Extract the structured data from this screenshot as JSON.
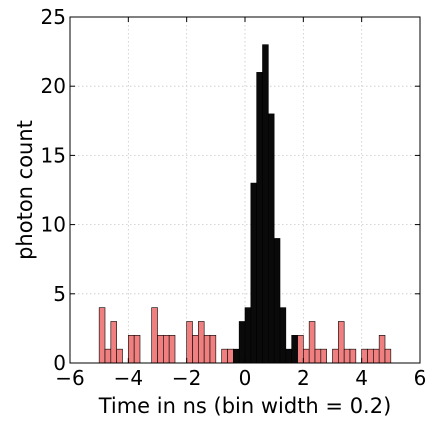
{
  "chart_data": {
    "type": "bar",
    "title": "",
    "xlabel": "Time in ns (bin width = 0.2)",
    "ylabel": "photon count",
    "xlim": [
      -6,
      6
    ],
    "ylim": [
      0,
      25
    ],
    "xticks": [
      -6,
      -4,
      -2,
      0,
      2,
      4,
      6
    ],
    "xtick_labels": [
      "−6",
      "−4",
      "−2",
      "0",
      "2",
      "4",
      "6"
    ],
    "yticks": [
      0,
      5,
      10,
      15,
      20,
      25
    ],
    "ytick_labels": [
      "0",
      "5",
      "10",
      "15",
      "20",
      "25"
    ],
    "grid": true,
    "bin_width": 0.2,
    "colors": {
      "background_bins": "#f08080",
      "signal_bins": "#0a0a0a",
      "bar_edge": "#000000"
    },
    "series": [
      {
        "color": "#f08080",
        "bins": [
          {
            "x0": -5.0,
            "x1": -4.8,
            "y": 4
          },
          {
            "x0": -4.8,
            "x1": -4.6,
            "y": 1
          },
          {
            "x0": -4.6,
            "x1": -4.4,
            "y": 3
          },
          {
            "x0": -4.4,
            "x1": -4.2,
            "y": 1
          },
          {
            "x0": -4.0,
            "x1": -3.8,
            "y": 2
          },
          {
            "x0": -3.8,
            "x1": -3.6,
            "y": 2
          },
          {
            "x0": -3.2,
            "x1": -3.0,
            "y": 4
          },
          {
            "x0": -3.0,
            "x1": -2.8,
            "y": 2
          },
          {
            "x0": -2.8,
            "x1": -2.6,
            "y": 2
          },
          {
            "x0": -2.6,
            "x1": -2.4,
            "y": 2
          },
          {
            "x0": -2.0,
            "x1": -1.8,
            "y": 3
          },
          {
            "x0": -1.8,
            "x1": -1.6,
            "y": 2
          },
          {
            "x0": -1.6,
            "x1": -1.4,
            "y": 3
          },
          {
            "x0": -1.4,
            "x1": -1.2,
            "y": 2
          },
          {
            "x0": -1.2,
            "x1": -1.0,
            "y": 2
          },
          {
            "x0": -0.8,
            "x1": -0.6,
            "y": 1
          },
          {
            "x0": -0.6,
            "x1": -0.4,
            "y": 1
          },
          {
            "x0": 1.8,
            "x1": 2.0,
            "y": 2
          },
          {
            "x0": 2.0,
            "x1": 2.2,
            "y": 1
          },
          {
            "x0": 2.2,
            "x1": 2.4,
            "y": 3
          },
          {
            "x0": 2.4,
            "x1": 2.6,
            "y": 1
          },
          {
            "x0": 2.6,
            "x1": 2.8,
            "y": 1
          },
          {
            "x0": 3.0,
            "x1": 3.2,
            "y": 1
          },
          {
            "x0": 3.2,
            "x1": 3.4,
            "y": 3
          },
          {
            "x0": 3.4,
            "x1": 3.6,
            "y": 1
          },
          {
            "x0": 3.6,
            "x1": 3.8,
            "y": 1
          },
          {
            "x0": 4.0,
            "x1": 4.2,
            "y": 1
          },
          {
            "x0": 4.2,
            "x1": 4.4,
            "y": 1
          },
          {
            "x0": 4.4,
            "x1": 4.6,
            "y": 1
          },
          {
            "x0": 4.6,
            "x1": 4.8,
            "y": 2
          },
          {
            "x0": 4.8,
            "x1": 5.0,
            "y": 1
          }
        ]
      },
      {
        "color": "#0a0a0a",
        "bins": [
          {
            "x0": -0.4,
            "x1": -0.2,
            "y": 1
          },
          {
            "x0": -0.2,
            "x1": 0.0,
            "y": 3
          },
          {
            "x0": 0.0,
            "x1": 0.2,
            "y": 4
          },
          {
            "x0": 0.2,
            "x1": 0.4,
            "y": 13
          },
          {
            "x0": 0.4,
            "x1": 0.6,
            "y": 21
          },
          {
            "x0": 0.6,
            "x1": 0.8,
            "y": 23
          },
          {
            "x0": 0.8,
            "x1": 1.0,
            "y": 18
          },
          {
            "x0": 1.0,
            "x1": 1.2,
            "y": 9
          },
          {
            "x0": 1.2,
            "x1": 1.4,
            "y": 4
          },
          {
            "x0": 1.4,
            "x1": 1.6,
            "y": 1
          },
          {
            "x0": 1.6,
            "x1": 1.8,
            "y": 2
          }
        ]
      }
    ]
  }
}
